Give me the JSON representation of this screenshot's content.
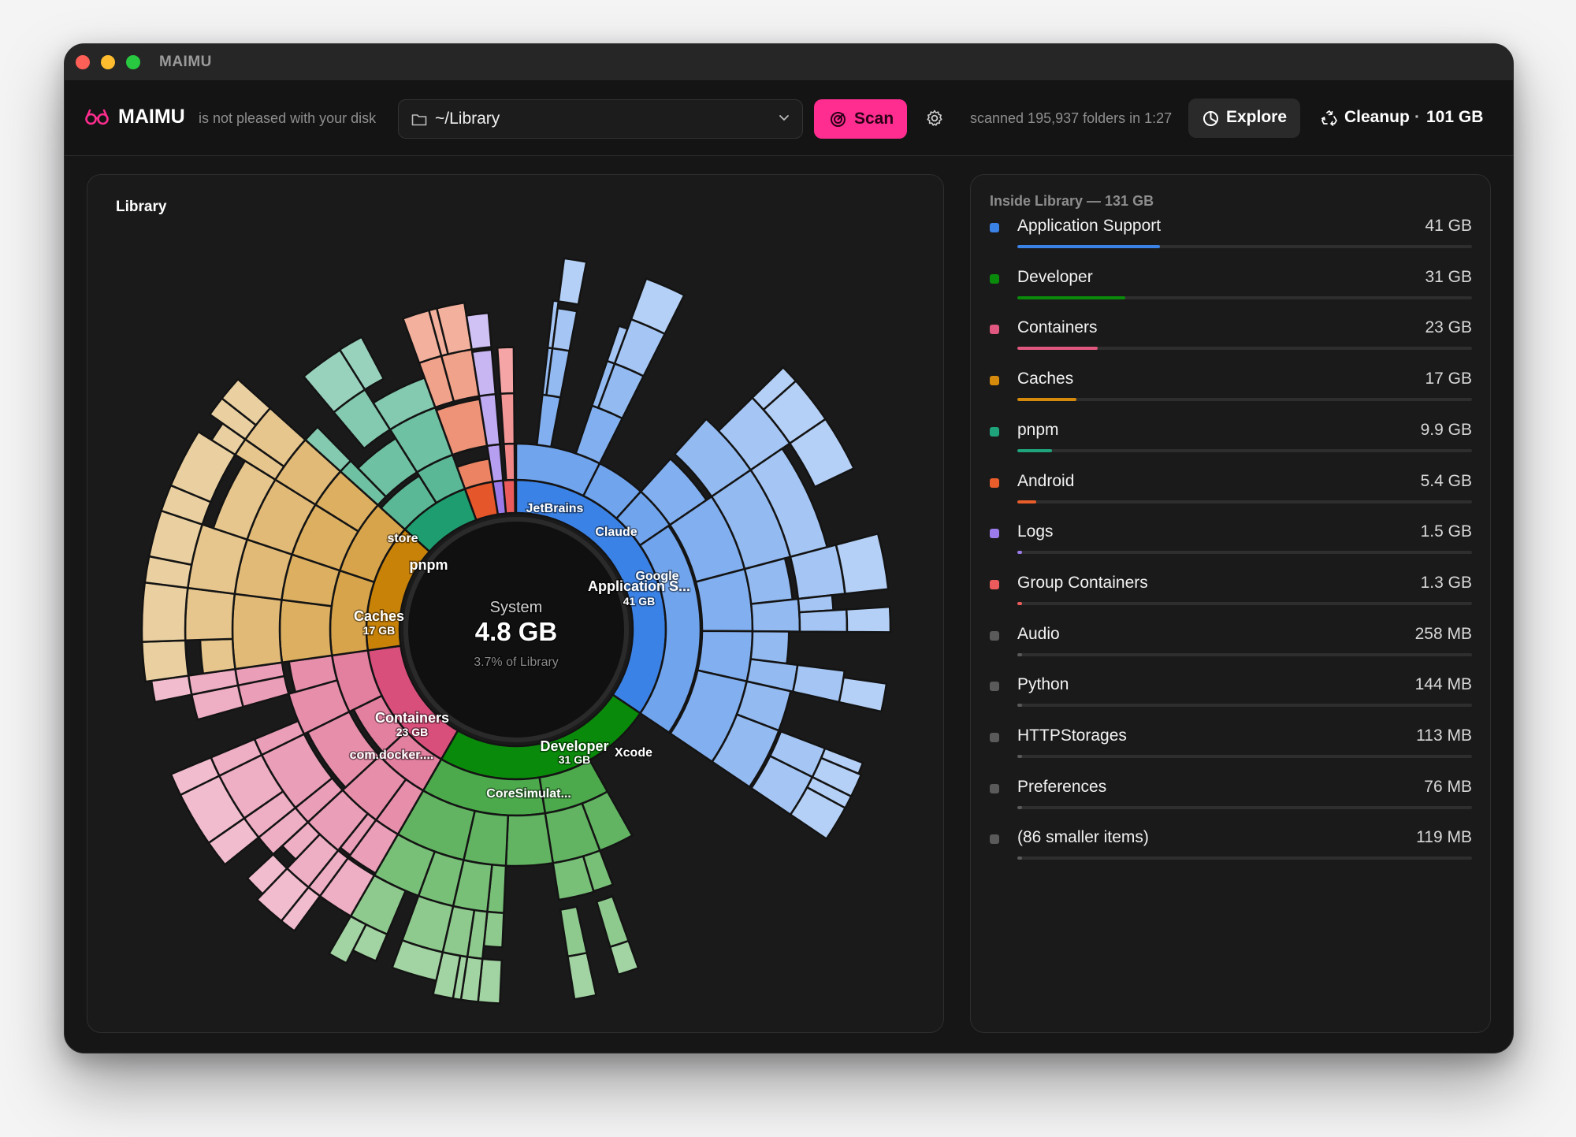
{
  "window": {
    "title": "MAIMU"
  },
  "toolbar": {
    "brand": "MAIMU",
    "tagline": "is not pleased with your disk",
    "path": "~/Library",
    "scan_label": "Scan",
    "scanned_text": "scanned 195,937 folders in 1:27",
    "explore_label": "Explore",
    "cleanup_label": "Cleanup",
    "cleanup_dot": "·",
    "cleanup_size": "101 GB",
    "accent": "#ff2d8f"
  },
  "chart": {
    "title": "Library",
    "center": {
      "name": "System",
      "value": "4.8 GB",
      "share": "3.7% of Library"
    }
  },
  "sidebar": {
    "title": "Inside Library — 131 GB",
    "items": [
      {
        "name": "Application Support",
        "size": "41 GB",
        "color": "#3b82e6",
        "fraction": 0.313
      },
      {
        "name": "Developer",
        "size": "31 GB",
        "color": "#0a8a0a",
        "fraction": 0.237
      },
      {
        "name": "Containers",
        "size": "23 GB",
        "color": "#e0587f",
        "fraction": 0.176
      },
      {
        "name": "Caches",
        "size": "17 GB",
        "color": "#d68a0c",
        "fraction": 0.13
      },
      {
        "name": "pnpm",
        "size": "9.9 GB",
        "color": "#1fa37a",
        "fraction": 0.076
      },
      {
        "name": "Android",
        "size": "5.4 GB",
        "color": "#e85d2a",
        "fraction": 0.041
      },
      {
        "name": "Logs",
        "size": "1.5 GB",
        "color": "#9b7bea",
        "fraction": 0.011
      },
      {
        "name": "Group Containers",
        "size": "1.3 GB",
        "color": "#ec5b5b",
        "fraction": 0.01
      },
      {
        "name": "Audio",
        "size": "258 MB",
        "color": "#5a5a5a",
        "fraction": 0.002
      },
      {
        "name": "Python",
        "size": "144 MB",
        "color": "#5a5a5a",
        "fraction": 0.001
      },
      {
        "name": "HTTPStorages",
        "size": "113 MB",
        "color": "#5a5a5a",
        "fraction": 0.001
      },
      {
        "name": "Preferences",
        "size": "76 MB",
        "color": "#5a5a5a",
        "fraction": 0.001
      },
      {
        "name": "(86 smaller items)",
        "size": "119 MB",
        "color": "#5a5a5a",
        "fraction": 0.001
      }
    ]
  },
  "chart_data": {
    "type": "sunburst",
    "title": "Library",
    "center": {
      "name": "System",
      "value_gb": 4.8,
      "percent_of_library": 3.7
    },
    "segments": [
      {
        "name": "Application S...",
        "value_label": "41 GB",
        "value_gb": 41,
        "color": "#3b82e6",
        "children": [
          {
            "name": "JetBrains",
            "color": "#4a90e8"
          },
          {
            "name": "Claude",
            "color": "#5a9aea"
          },
          {
            "name": "Google",
            "color": "#6aa4ec"
          }
        ]
      },
      {
        "name": "Developer",
        "value_label": "31 GB",
        "value_gb": 31,
        "color": "#0a8a0a",
        "children": [
          {
            "name": "CoreSimulat...",
            "color": "#3aa03a"
          },
          {
            "name": "Xcode",
            "color": "#2c962c"
          }
        ]
      },
      {
        "name": "Containers",
        "value_label": "23 GB",
        "value_gb": 23,
        "color": "#d94f7c",
        "children": [
          {
            "name": "com.docker....",
            "color": "#e0668f"
          }
        ]
      },
      {
        "name": "Caches",
        "value_label": "17 GB",
        "value_gb": 17,
        "color": "#c98208",
        "children": []
      },
      {
        "name": "pnpm",
        "value_gb": 9.9,
        "color": "#1e9e70",
        "children": [
          {
            "name": "store",
            "color": "#38b088"
          }
        ]
      },
      {
        "name": "Android",
        "value_gb": 5.4,
        "color": "#e5562a",
        "children": []
      },
      {
        "name": "Logs",
        "value_gb": 1.5,
        "color": "#9b7bea",
        "children": []
      },
      {
        "name": "Group Containers",
        "value_gb": 1.3,
        "color": "#ec5b5b",
        "children": []
      }
    ]
  }
}
